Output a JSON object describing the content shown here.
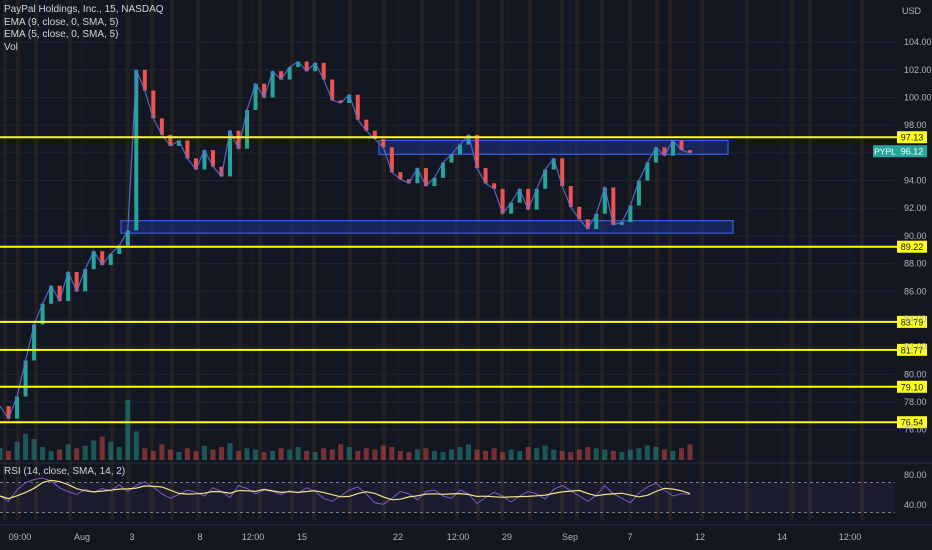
{
  "header": {
    "title": "PayPal Holdings, Inc., 15, NASDAQ",
    "indicators": [
      "EMA (9, close, 0, SMA, 5)",
      "EMA (5, close, 0, SMA, 5)",
      "Vol"
    ],
    "rsi_label": "RSI (14, close, SMA, 14, 2)"
  },
  "colors": {
    "background": "#131722",
    "level_line": "#ffff1a",
    "zone_fill": "#1f3fbf",
    "up": "#26a69a",
    "down": "#ef5350",
    "rsi": "#7e57c2",
    "rsi_ma": "#f2e28a",
    "price_badge": "#26a69a",
    "session_band": "#ff9800"
  },
  "chart_data": {
    "type": "line",
    "symbol": "PYPL",
    "currency": "USD",
    "last_price": 96.12,
    "y_ticks": [
      76.0,
      78.0,
      80.0,
      82.0,
      84.0,
      86.0,
      88.0,
      90.0,
      92.0,
      94.0,
      96.0,
      98.0,
      100.0,
      102.0,
      104.0
    ],
    "ylim": [
      75.4,
      105.6
    ],
    "x_ticks": [
      "09:00",
      "Aug",
      "3",
      "8",
      "12:00",
      "15",
      "22",
      "12:00",
      "29",
      "Sep",
      "7",
      "12",
      "14",
      "12:00"
    ],
    "horizontal_levels": [
      97.13,
      89.22,
      83.79,
      81.77,
      79.1,
      76.54
    ],
    "zones": [
      {
        "from_label": "22",
        "to_label": "12",
        "low": 95.9,
        "high": 96.9
      },
      {
        "from_label": "3",
        "to_label": "12",
        "low": 90.2,
        "high": 91.1
      }
    ],
    "price_series": {
      "name": "PYPL",
      "points": [
        [
          0,
          77.7
        ],
        [
          1,
          76.8
        ],
        [
          2,
          78.4
        ],
        [
          3,
          81.0
        ],
        [
          4,
          83.6
        ],
        [
          5,
          85.1
        ],
        [
          6,
          86.4
        ],
        [
          7,
          85.3
        ],
        [
          8,
          87.4
        ],
        [
          9,
          86.0
        ],
        [
          10,
          87.6
        ],
        [
          11,
          88.9
        ],
        [
          12,
          87.9
        ],
        [
          13,
          88.7
        ],
        [
          14,
          89.3
        ],
        [
          15,
          90.4
        ],
        [
          16,
          102.0
        ],
        [
          17,
          100.5
        ],
        [
          18,
          98.5
        ],
        [
          19,
          97.3
        ],
        [
          20,
          96.5
        ],
        [
          21,
          96.9
        ],
        [
          22,
          95.6
        ],
        [
          23,
          94.8
        ],
        [
          24,
          96.2
        ],
        [
          25,
          95.0
        ],
        [
          26,
          94.3
        ],
        [
          27,
          97.6
        ],
        [
          28,
          96.3
        ],
        [
          29,
          99.1
        ],
        [
          30,
          101.0
        ],
        [
          31,
          100.0
        ],
        [
          32,
          101.9
        ],
        [
          33,
          101.3
        ],
        [
          34,
          102.2
        ],
        [
          35,
          102.6
        ],
        [
          36,
          101.9
        ],
        [
          37,
          102.5
        ],
        [
          38,
          101.3
        ],
        [
          39,
          99.8
        ],
        [
          40,
          99.6
        ],
        [
          41,
          100.2
        ],
        [
          42,
          98.4
        ],
        [
          43,
          97.6
        ],
        [
          44,
          97.0
        ],
        [
          45,
          96.4
        ],
        [
          46,
          94.6
        ],
        [
          47,
          94.1
        ],
        [
          48,
          93.8
        ],
        [
          49,
          94.9
        ],
        [
          50,
          93.6
        ],
        [
          51,
          94.2
        ],
        [
          52,
          95.3
        ],
        [
          53,
          95.9
        ],
        [
          54,
          96.6
        ],
        [
          55,
          97.3
        ],
        [
          56,
          94.9
        ],
        [
          57,
          93.8
        ],
        [
          58,
          93.4
        ],
        [
          59,
          91.6
        ],
        [
          60,
          92.4
        ],
        [
          61,
          93.4
        ],
        [
          62,
          91.9
        ],
        [
          63,
          93.4
        ],
        [
          64,
          94.8
        ],
        [
          65,
          95.6
        ],
        [
          66,
          93.6
        ],
        [
          67,
          92.1
        ],
        [
          68,
          91.2
        ],
        [
          69,
          90.5
        ],
        [
          70,
          91.6
        ],
        [
          71,
          93.5
        ],
        [
          72,
          90.8
        ],
        [
          73,
          91.0
        ],
        [
          74,
          92.2
        ],
        [
          75,
          94.0
        ],
        [
          76,
          95.3
        ],
        [
          77,
          96.4
        ],
        [
          78,
          95.8
        ],
        [
          79,
          96.9
        ],
        [
          80,
          96.2
        ],
        [
          81,
          96.0
        ]
      ]
    },
    "rsi": {
      "y_ticks": [
        80.0,
        40.0
      ],
      "ylim": [
        20,
        92
      ],
      "bands": [
        70,
        30
      ],
      "values": [
        52,
        45,
        60,
        70,
        74,
        76,
        72,
        63,
        58,
        54,
        61,
        57,
        62,
        59,
        67,
        58,
        66,
        71,
        64,
        55,
        49,
        54,
        60,
        57,
        52,
        63,
        58,
        50,
        66,
        62,
        55,
        60,
        58,
        54,
        59,
        56,
        63,
        58,
        49,
        45,
        52,
        60,
        64,
        55,
        43,
        41,
        49,
        58,
        55,
        47,
        58,
        60,
        52,
        49,
        60,
        55,
        42,
        50,
        57,
        52,
        44,
        52,
        58,
        55,
        48,
        61,
        66,
        59,
        52,
        45,
        53,
        66,
        55,
        49,
        43,
        56,
        64,
        69,
        60,
        52,
        55,
        54
      ]
    },
    "volume": [
      9,
      7,
      14,
      20,
      16,
      10,
      7,
      8,
      12,
      9,
      11,
      15,
      18,
      14,
      10,
      46,
      22,
      9,
      7,
      12,
      8,
      6,
      9,
      7,
      11,
      8,
      10,
      13,
      7,
      9,
      8,
      6,
      7,
      9,
      8,
      10,
      7,
      6,
      9,
      8,
      12,
      10,
      7,
      9,
      8,
      11,
      10,
      7,
      6,
      8,
      9,
      7,
      6,
      8,
      10,
      12,
      8,
      7,
      9,
      6,
      8,
      7,
      10,
      9,
      11,
      8,
      7,
      6,
      8,
      10,
      9,
      8,
      7,
      6,
      8,
      9,
      11,
      10,
      8,
      7,
      9,
      12
    ]
  }
}
